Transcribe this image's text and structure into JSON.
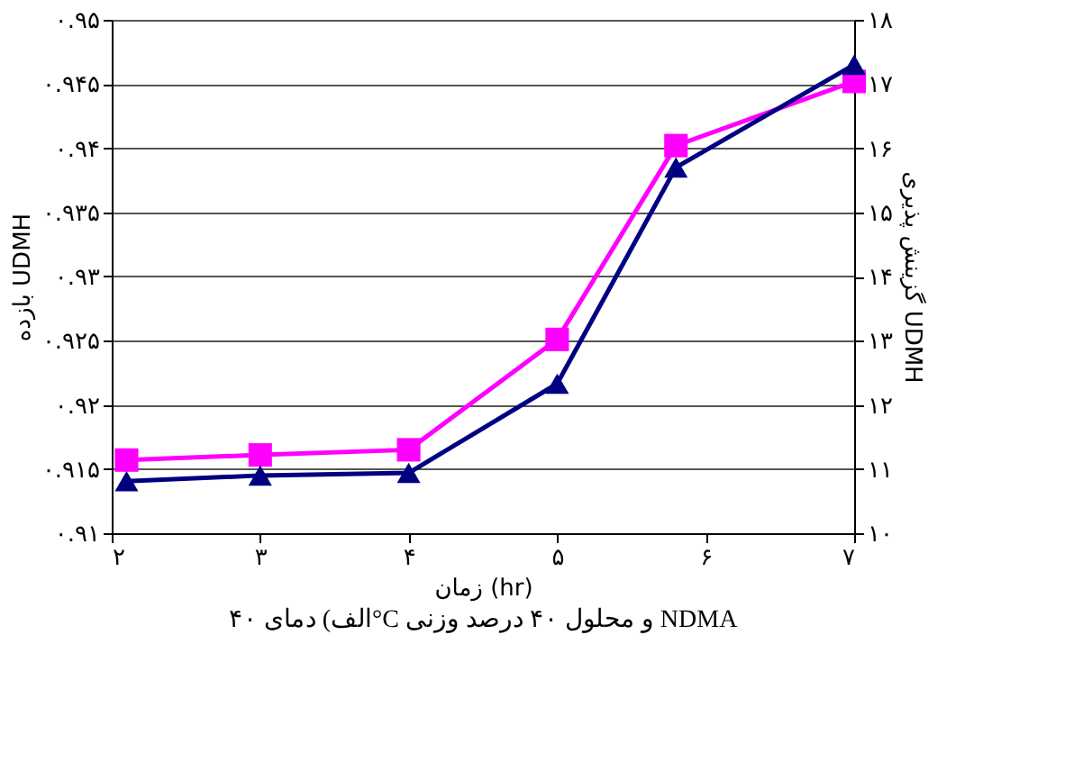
{
  "chart_data": {
    "type": "line",
    "xlabel": "زمان (hr)",
    "ylabel": "بازده UDMH",
    "y2label": "گزینش پذیری UDMH",
    "annotations": [
      "الف) دمای ۴۰°C و محلول ۴۰ درصد وزنی NDMA"
    ],
    "xlim": [
      2,
      7
    ],
    "xticks": [
      {
        "value": 2,
        "label": "۲"
      },
      {
        "value": 3,
        "label": "۳"
      },
      {
        "value": 4,
        "label": "۴"
      },
      {
        "value": 5,
        "label": "۵"
      },
      {
        "value": 6,
        "label": "۶"
      },
      {
        "value": 7,
        "label": "۷"
      }
    ],
    "ylim": [
      0.91,
      0.95
    ],
    "yticks": [
      {
        "value": 0.91,
        "label": "۰.۹۱"
      },
      {
        "value": 0.915,
        "label": "۰.۹۱۵"
      },
      {
        "value": 0.92,
        "label": "۰.۹۲"
      },
      {
        "value": 0.925,
        "label": "۰.۹۲۵"
      },
      {
        "value": 0.93,
        "label": "۰.۹۳"
      },
      {
        "value": 0.935,
        "label": "۰.۹۳۵"
      },
      {
        "value": 0.94,
        "label": "۰.۹۴"
      },
      {
        "value": 0.945,
        "label": "۰.۹۴۵"
      },
      {
        "value": 0.95,
        "label": "۰.۹۵"
      }
    ],
    "y2lim": [
      10,
      18
    ],
    "y2ticks": [
      {
        "value": 10,
        "label": "۱۰"
      },
      {
        "value": 11,
        "label": "۱۱"
      },
      {
        "value": 12,
        "label": "۱۲"
      },
      {
        "value": 13,
        "label": "۱۳"
      },
      {
        "value": 14,
        "label": "۱۴"
      },
      {
        "value": 15,
        "label": "۱۵"
      },
      {
        "value": 16,
        "label": "۱۶"
      },
      {
        "value": 17,
        "label": "۱۷"
      },
      {
        "value": 18,
        "label": "۱۸"
      }
    ],
    "grid": "y",
    "legend": false,
    "series": [
      {
        "color": "#ff00ff",
        "marker": "square",
        "x": [
          2.1,
          3,
          4,
          5,
          5.8,
          7
        ],
        "values": [
          0.9157,
          0.9161,
          0.9165,
          0.9251,
          0.9402,
          0.9452
        ]
      },
      {
        "color": "#000080",
        "marker": "triangle",
        "axis": "y2",
        "x": [
          2.1,
          3,
          4,
          5,
          5.8,
          7
        ],
        "values": [
          10.81,
          10.9,
          10.94,
          12.33,
          15.7,
          17.3
        ]
      }
    ]
  }
}
